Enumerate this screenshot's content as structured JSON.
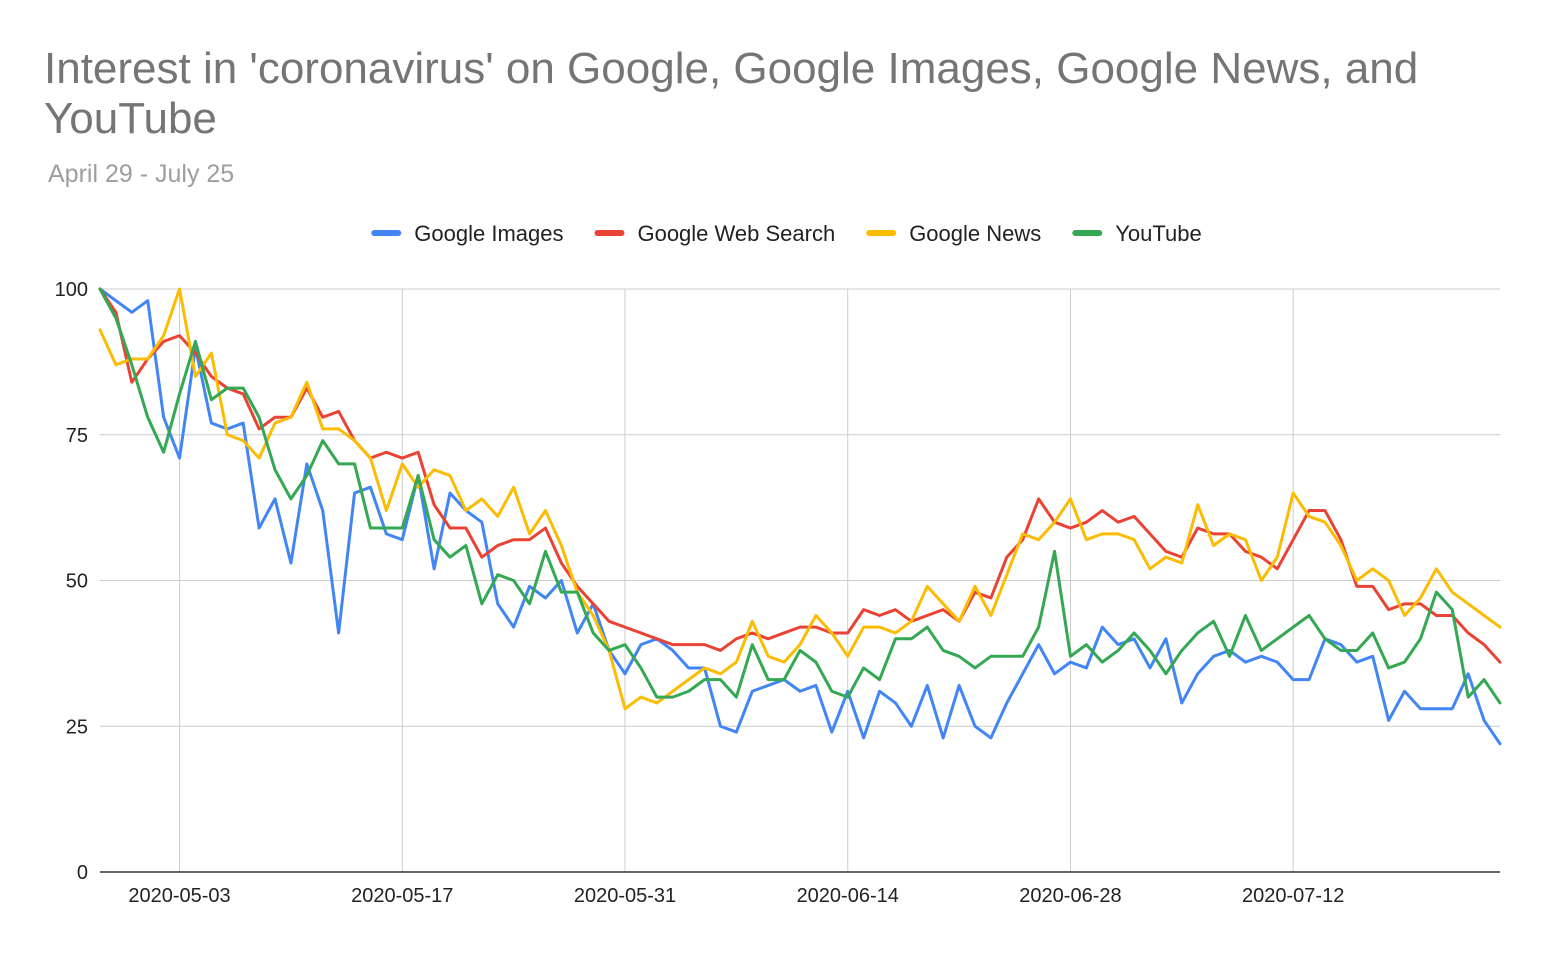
{
  "chart_data": {
    "type": "line",
    "title": "Interest in 'coronavirus' on Google, Google Images, Google News, and YouTube",
    "subtitle": "April 29 - July 25",
    "xlabel": "",
    "ylabel": "",
    "ylim": [
      0,
      100
    ],
    "y_ticks": [
      "0",
      "25",
      "50",
      "75",
      "100"
    ],
    "x_range": [
      "2020-04-28",
      "2020-07-25"
    ],
    "x_ticks": [
      "2020-05-03",
      "2020-05-17",
      "2020-05-31",
      "2020-06-14",
      "2020-06-28",
      "2020-07-12"
    ],
    "legend_position": "top",
    "grid": true,
    "series": [
      {
        "name": "Google Images",
        "color": "#4285f4",
        "values": [
          100,
          98,
          96,
          98,
          78,
          71,
          90,
          77,
          76,
          77,
          59,
          64,
          53,
          70,
          62,
          41,
          65,
          66,
          58,
          57,
          68,
          52,
          65,
          62,
          60,
          46,
          42,
          49,
          47,
          50,
          41,
          46,
          38,
          34,
          39,
          40,
          38,
          35,
          35,
          25,
          24,
          31,
          32,
          33,
          31,
          32,
          24,
          31,
          23,
          31,
          29,
          25,
          32,
          23,
          32,
          25,
          23,
          29,
          34,
          39,
          34,
          36,
          35,
          42,
          39,
          40,
          35,
          40,
          29,
          34,
          37,
          38,
          36,
          37,
          36,
          33,
          33,
          40,
          39,
          36,
          37,
          26,
          31,
          28,
          28,
          28,
          34,
          26,
          22
        ]
      },
      {
        "name": "Google Web Search",
        "color": "#ea4335",
        "values": [
          100,
          96,
          84,
          88,
          91,
          92,
          89,
          85,
          83,
          82,
          76,
          78,
          78,
          83,
          78,
          79,
          74,
          71,
          72,
          71,
          72,
          63,
          59,
          59,
          54,
          56,
          57,
          57,
          59,
          53,
          49,
          46,
          43,
          42,
          41,
          40,
          39,
          39,
          39,
          38,
          40,
          41,
          40,
          41,
          42,
          42,
          41,
          41,
          45,
          44,
          45,
          43,
          44,
          45,
          43,
          48,
          47,
          54,
          57,
          64,
          60,
          59,
          60,
          62,
          60,
          61,
          58,
          55,
          54,
          59,
          58,
          58,
          55,
          54,
          52,
          57,
          62,
          62,
          57,
          49,
          49,
          45,
          46,
          46,
          44,
          44,
          41,
          39,
          36
        ]
      },
      {
        "name": "Google News",
        "color": "#fbbc04",
        "values": [
          93,
          87,
          88,
          88,
          92,
          100,
          85,
          89,
          75,
          74,
          71,
          77,
          78,
          84,
          76,
          76,
          74,
          71,
          62,
          70,
          66,
          69,
          68,
          62,
          64,
          61,
          66,
          58,
          62,
          56,
          48,
          44,
          38,
          28,
          30,
          29,
          31,
          33,
          35,
          34,
          36,
          43,
          37,
          36,
          39,
          44,
          41,
          37,
          42,
          42,
          41,
          43,
          49,
          46,
          43,
          49,
          44,
          51,
          58,
          57,
          60,
          64,
          57,
          58,
          58,
          57,
          52,
          54,
          53,
          63,
          56,
          58,
          57,
          50,
          54,
          65,
          61,
          60,
          56,
          50,
          52,
          50,
          44,
          47,
          52,
          48,
          46,
          44,
          42
        ]
      },
      {
        "name": "YouTube",
        "color": "#34a853",
        "values": [
          100,
          95,
          87,
          78,
          72,
          82,
          91,
          81,
          83,
          83,
          78,
          69,
          64,
          68,
          74,
          70,
          70,
          59,
          59,
          59,
          68,
          57,
          54,
          56,
          46,
          51,
          50,
          46,
          55,
          48,
          48,
          41,
          38,
          39,
          35,
          30,
          30,
          31,
          33,
          33,
          30,
          39,
          33,
          33,
          38,
          36,
          31,
          30,
          35,
          33,
          40,
          40,
          42,
          38,
          37,
          35,
          37,
          37,
          37,
          42,
          55,
          37,
          39,
          36,
          38,
          41,
          38,
          34,
          38,
          41,
          43,
          37,
          44,
          38,
          40,
          42,
          44,
          40,
          38,
          38,
          41,
          35,
          36,
          40,
          48,
          45,
          30,
          33,
          29
        ]
      }
    ]
  }
}
